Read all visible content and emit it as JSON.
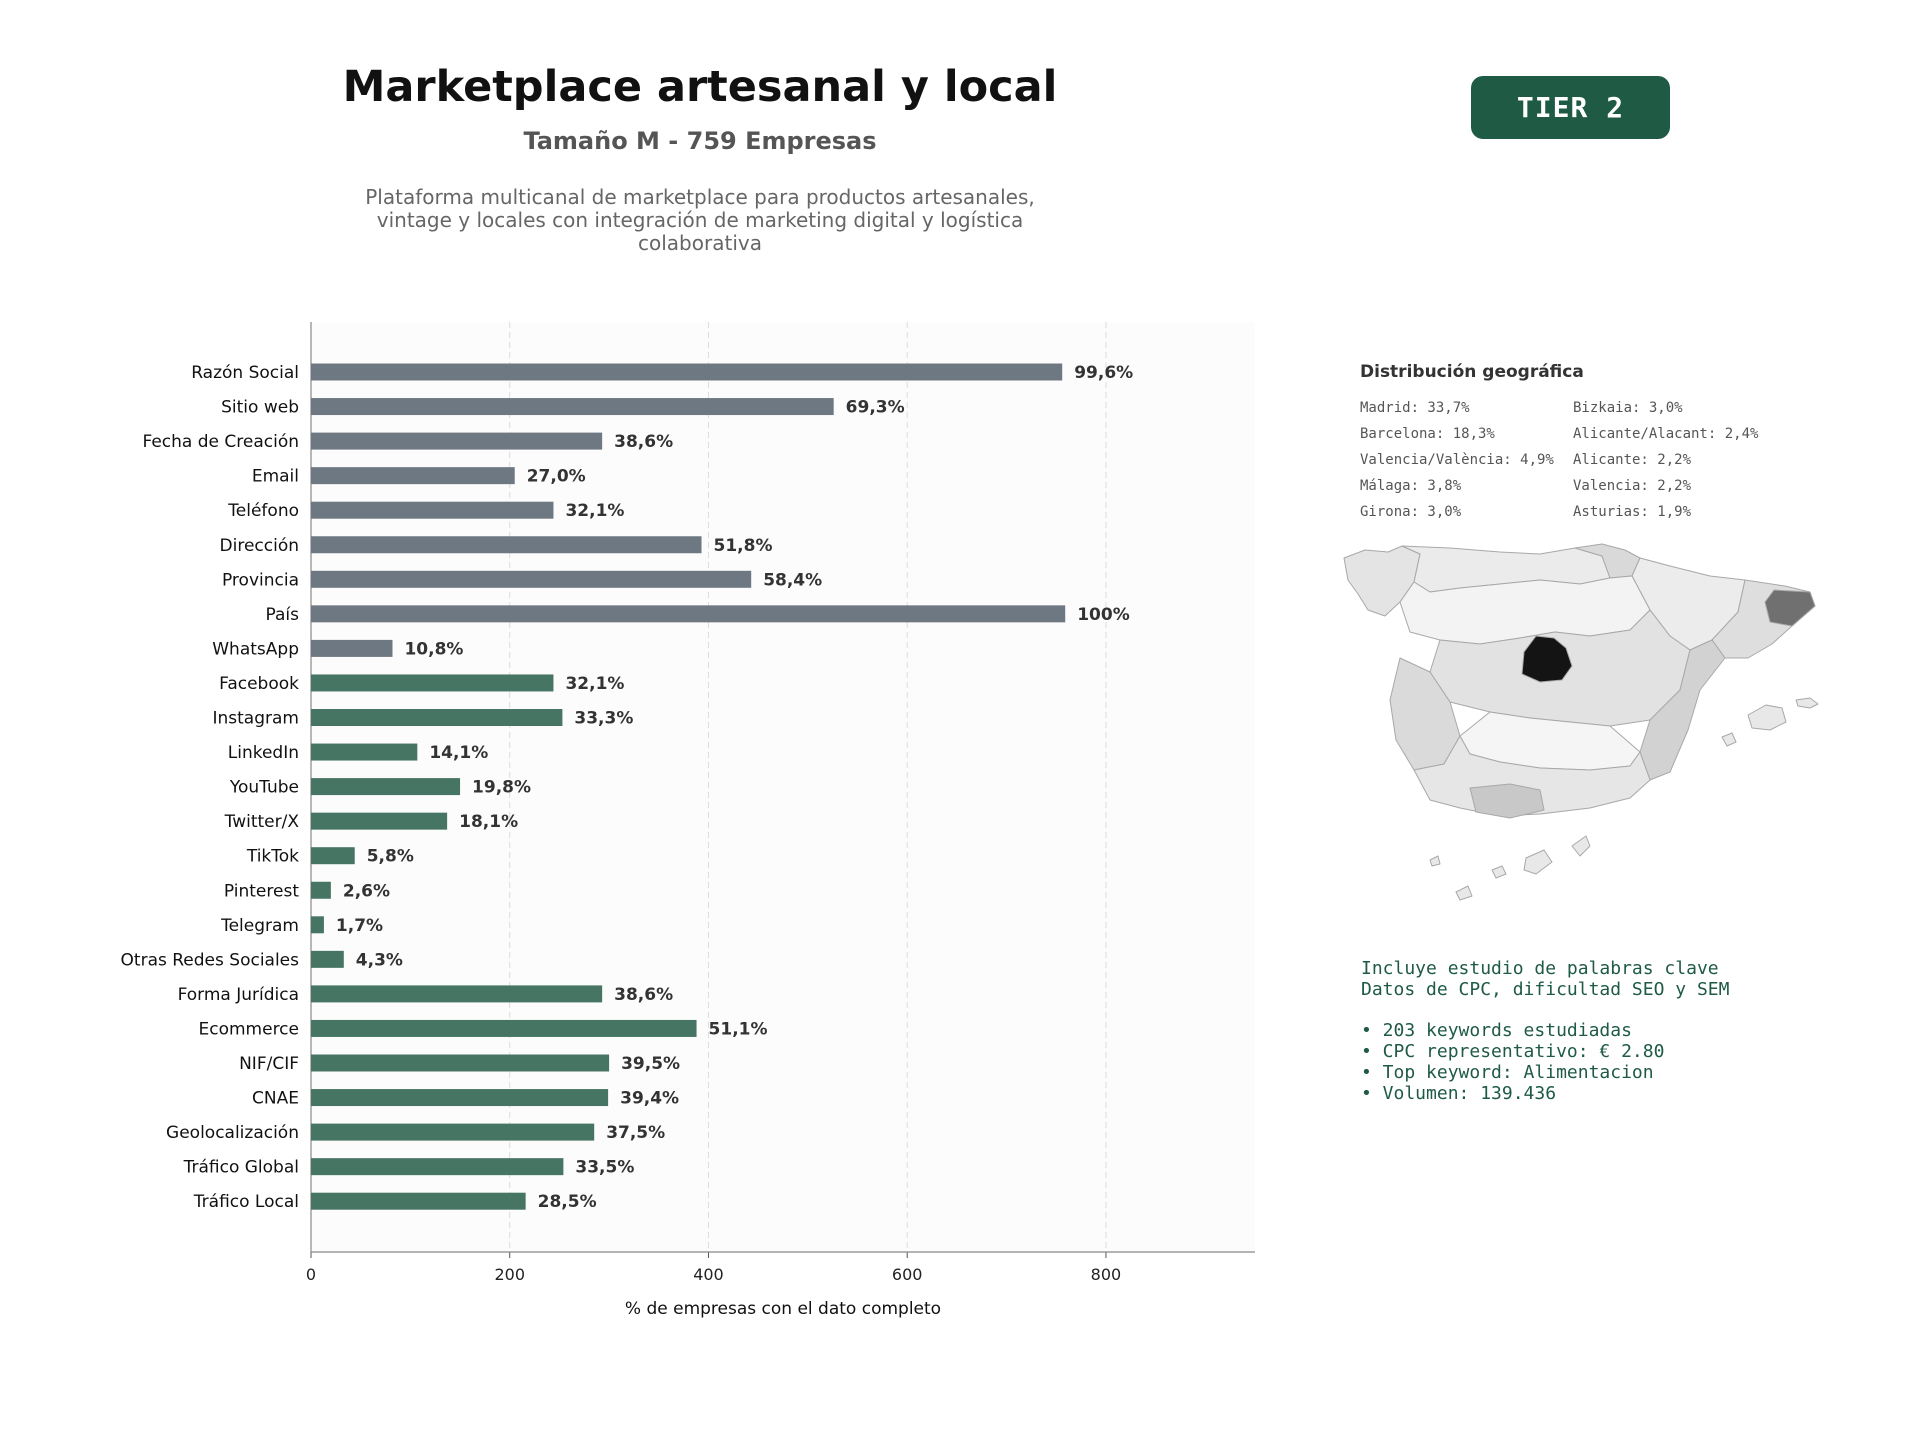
{
  "header": {
    "title": "Marketplace artesanal y local",
    "subtitle": "Tamaño M - 759 Empresas",
    "description_lines": [
      "Plataforma multicanal de marketplace para productos artesanales,",
      "vintage y locales con integración de marketing digital y logística",
      "colaborativa"
    ],
    "tier_badge": "TIER 2"
  },
  "colors": {
    "basic_bar": "#6e7882",
    "extended_bar": "#477563",
    "badge": "#1e5a44",
    "keyword_text": "#1e5a44"
  },
  "chart_data": {
    "type": "bar",
    "orientation": "horizontal",
    "categories": [
      "Razón Social",
      "Sitio web",
      "Fecha de Creación",
      "Email",
      "Teléfono",
      "Dirección",
      "Provincia",
      "País",
      "WhatsApp",
      "Facebook",
      "Instagram",
      "LinkedIn",
      "YouTube",
      "Twitter/X",
      "TikTok",
      "Pinterest",
      "Telegram",
      "Otras Redes Sociales",
      "Forma Jurídica",
      "Ecommerce",
      "NIF/CIF",
      "CNAE",
      "Geolocalización",
      "Tráfico Global",
      "Tráfico Local"
    ],
    "values": [
      756,
      526,
      293,
      205,
      244,
      393,
      443,
      759,
      82,
      244,
      253,
      107,
      150,
      137,
      44,
      20,
      13,
      33,
      293,
      388,
      300,
      299,
      285,
      254,
      216
    ],
    "data_labels": [
      "99,6%",
      "69,3%",
      "38,6%",
      "27,0%",
      "32,1%",
      "51,8%",
      "58,4%",
      "100%",
      "10,8%",
      "32,1%",
      "33,3%",
      "14,1%",
      "19,8%",
      "18,1%",
      "5,8%",
      "2,6%",
      "1,7%",
      "4,3%",
      "38,6%",
      "51,1%",
      "39,5%",
      "39,4%",
      "37,5%",
      "33,5%",
      "28,5%"
    ],
    "bar_groups": [
      "basic",
      "basic",
      "basic",
      "basic",
      "basic",
      "basic",
      "basic",
      "basic",
      "basic",
      "extended",
      "extended",
      "extended",
      "extended",
      "extended",
      "extended",
      "extended",
      "extended",
      "extended",
      "extended",
      "extended",
      "extended",
      "extended",
      "extended",
      "extended",
      "extended"
    ],
    "xlabel": "% de empresas con el dato completo",
    "xlim": [
      0,
      950
    ],
    "xticks": [
      0,
      200,
      400,
      600,
      800
    ],
    "grid": "vertical dashed",
    "legend": "none"
  },
  "geo": {
    "title": "Distribución geográfica",
    "left_column": [
      "Madrid: 33,7%",
      "Barcelona: 18,3%",
      "Valencia/València: 4,9%",
      "Málaga: 3,8%",
      "Girona: 3,0%"
    ],
    "right_column": [
      "Bizkaia: 3,0%",
      "Alicante/Alacant: 2,4%",
      "Alicante: 2,2%",
      "Valencia: 2,2%",
      "Asturias: 1,9%"
    ]
  },
  "keywords": {
    "lines_top": [
      "Incluye estudio de palabras clave",
      "Datos de CPC, dificultad SEO y SEM"
    ],
    "bullets": [
      "• 203 keywords estudiadas",
      "• CPC representativo: € 2.80",
      "• Top keyword: Alimentacion",
      "• Volumen: 139.436"
    ]
  }
}
